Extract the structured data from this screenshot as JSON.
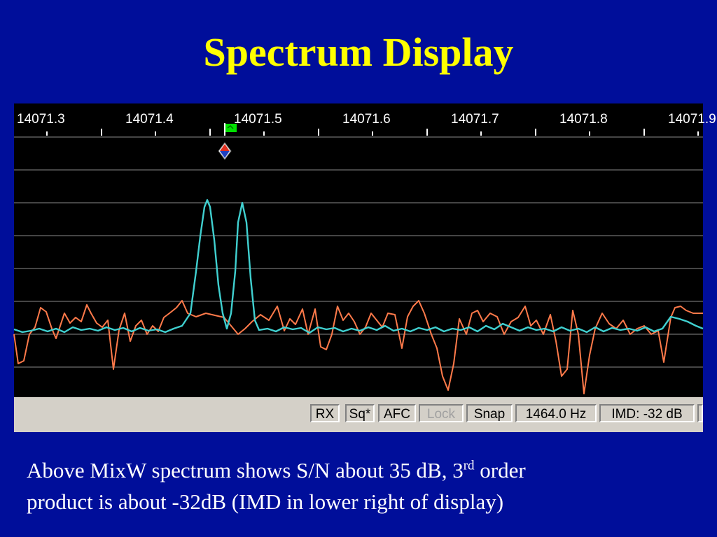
{
  "slide": {
    "title": "Spectrum Display",
    "caption": {
      "line1_pre": "Above MixW spectrum shows S/N about 35 dB, 3",
      "superscript": "rd",
      "line1_post": " order",
      "line2": "product is about -32dB  (IMD in lower right of display)"
    }
  },
  "spectrum": {
    "frequency_labels": [
      "14071.3",
      "14071.4",
      "14071.5",
      "14071.6",
      "14071.7",
      "14071.8",
      "14071.9"
    ],
    "marker_icon": "green-flag-icon",
    "cursor_icon": "tuning-cursor-icon"
  },
  "status_bar": {
    "rx": "RX",
    "squelch": "Sq*",
    "afc": "AFC",
    "lock": "Lock",
    "snap": "Snap",
    "frequency": "1464.0 Hz",
    "imd": "IMD: -32 dB"
  },
  "colors": {
    "background": "#000e9a",
    "title": "#ffff00",
    "spectrum_bg": "#000000",
    "grid": "#8a8a8a",
    "trace_cyan": "#40d0d0",
    "trace_orange": "#ff7a4a",
    "flag": "#00e000"
  }
}
